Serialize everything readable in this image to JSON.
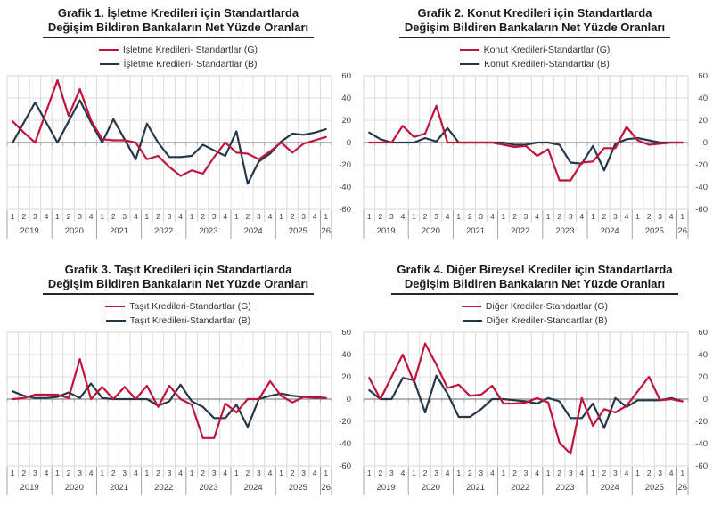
{
  "page": {
    "background": "#ffffff"
  },
  "colors": {
    "series_g": "#C0143C",
    "series_b": "#24384A",
    "grid": "#dcdcdc",
    "zero_line": "#9b9b9b",
    "plot_border": "#d4d4d4",
    "axis_text": "#3f3f3f",
    "title_text": "#1a1a1a",
    "quarter_separator": "#c6c6c6",
    "year_separator": "#9b9b9b"
  },
  "axis_shared": {
    "y_ticks": [
      60,
      40,
      20,
      0,
      -20,
      -40,
      -60
    ],
    "ylim": [
      -60,
      60
    ],
    "quarter_labels": [
      "1",
      "2",
      "3",
      "4",
      "1",
      "2",
      "3",
      "4",
      "1",
      "2",
      "3",
      "4",
      "1",
      "2",
      "3",
      "4",
      "1",
      "2",
      "3",
      "4",
      "1",
      "2",
      "3",
      "4",
      "1",
      "2",
      "3",
      "4",
      "1"
    ],
    "year_groups": [
      {
        "label": "2019",
        "span": 4
      },
      {
        "label": "2020",
        "span": 4
      },
      {
        "label": "2021",
        "span": 4
      },
      {
        "label": "2022",
        "span": 4
      },
      {
        "label": "2023",
        "span": 4
      },
      {
        "label": "2024",
        "span": 4
      },
      {
        "label": "2025",
        "span": 4
      },
      {
        "label": "26",
        "span": 1
      }
    ]
  },
  "chart_data": [
    {
      "type": "line",
      "title_line1": "Grafik 1. İşletme Kredileri için Standartlarda",
      "title_line2": "Değişim Bildiren Bankaların Net Yüzde Oranları",
      "legend": [
        {
          "name": "İşletme Kredileri- Standartlar (G)",
          "color": "#C0143C"
        },
        {
          "name": "İşletme Kredileri- Standartlar (B)",
          "color": "#24384A"
        }
      ],
      "categories": [
        "2019Q1",
        "2019Q2",
        "2019Q3",
        "2019Q4",
        "2020Q1",
        "2020Q2",
        "2020Q3",
        "2020Q4",
        "2021Q1",
        "2021Q2",
        "2021Q3",
        "2021Q4",
        "2022Q1",
        "2022Q2",
        "2022Q3",
        "2022Q4",
        "2023Q1",
        "2023Q2",
        "2023Q3",
        "2023Q4",
        "2024Q1",
        "2024Q2",
        "2024Q3",
        "2024Q4",
        "2025Q1",
        "2025Q2",
        "2025Q3",
        "2025Q4",
        "2026Q1"
      ],
      "series": [
        {
          "name": "İşletme Kredileri- Standartlar (G)",
          "color": "#C0143C",
          "values": [
            19,
            9,
            0,
            28,
            56,
            24,
            48,
            20,
            3,
            2,
            2,
            0,
            -15,
            -12,
            -22,
            -30,
            -25,
            -28,
            -13,
            0,
            -9,
            -10,
            -15,
            -8,
            0,
            -9,
            -1,
            2,
            5
          ]
        },
        {
          "name": "İşletme Kredileri- Standartlar (B)",
          "color": "#24384A",
          "values": [
            0,
            18,
            36,
            18,
            0,
            19,
            38,
            18,
            0,
            21,
            3,
            -15,
            17,
            0,
            -13,
            -13,
            -12,
            -2,
            -7,
            -12,
            10,
            -37,
            -17,
            -10,
            1,
            8,
            7,
            9,
            12
          ]
        }
      ],
      "ylim": [
        -60,
        60
      ],
      "y_ticks": [
        60,
        40,
        20,
        0,
        -20,
        -40,
        -60
      ],
      "grid": true,
      "legend_position": "top"
    },
    {
      "type": "line",
      "title_line1": "Grafik 2. Konut Kredileri için Standartlarda",
      "title_line2": "Değişim Bildiren Bankaların Net Yüzde Oranları",
      "legend": [
        {
          "name": "Konut Kredileri-Standartlar (G)",
          "color": "#C0143C"
        },
        {
          "name": "Konut Kredileri-Standartlar (B)",
          "color": "#24384A"
        }
      ],
      "categories": [
        "2019Q1",
        "2019Q2",
        "2019Q3",
        "2019Q4",
        "2020Q1",
        "2020Q2",
        "2020Q3",
        "2020Q4",
        "2021Q1",
        "2021Q2",
        "2021Q3",
        "2021Q4",
        "2022Q1",
        "2022Q2",
        "2022Q3",
        "2022Q4",
        "2023Q1",
        "2023Q2",
        "2023Q3",
        "2023Q4",
        "2024Q1",
        "2024Q2",
        "2024Q3",
        "2024Q4",
        "2025Q1",
        "2025Q2",
        "2025Q3",
        "2025Q4",
        "2026Q1"
      ],
      "series": [
        {
          "name": "Konut Kredileri-Standartlar (G)",
          "color": "#C0143C",
          "values": [
            0,
            0,
            0,
            15,
            5,
            8,
            33,
            0,
            0,
            0,
            0,
            0,
            -2,
            -4,
            -3,
            -12,
            -6,
            -34,
            -34,
            -18,
            -17,
            -5,
            -5,
            14,
            2,
            -2,
            -1,
            0,
            0
          ]
        },
        {
          "name": "Konut Kredileri-Standartlar (B)",
          "color": "#24384A",
          "values": [
            9,
            3,
            0,
            0,
            0,
            4,
            1,
            13,
            0,
            0,
            0,
            0,
            0,
            -2,
            -2,
            0,
            0,
            -2,
            -18,
            -19,
            -3,
            -25,
            -1,
            3,
            4,
            2,
            0,
            0,
            0
          ]
        }
      ],
      "ylim": [
        -60,
        60
      ],
      "y_ticks": [
        60,
        40,
        20,
        0,
        -20,
        -40,
        -60
      ],
      "grid": true,
      "legend_position": "top"
    },
    {
      "type": "line",
      "title_line1": "Grafik 3. Taşıt Kredileri için Standartlarda",
      "title_line2": "Değişim Bildiren Bankaların Net Yüzde Oranları",
      "legend": [
        {
          "name": "Taşıt Kredileri-Standartlar (G)",
          "color": "#C0143C"
        },
        {
          "name": "Taşıt Kredileri-Standartlar (B)",
          "color": "#24384A"
        }
      ],
      "categories": [
        "2019Q1",
        "2019Q2",
        "2019Q3",
        "2019Q4",
        "2020Q1",
        "2020Q2",
        "2020Q3",
        "2020Q4",
        "2021Q1",
        "2021Q2",
        "2021Q3",
        "2021Q4",
        "2022Q1",
        "2022Q2",
        "2022Q3",
        "2022Q4",
        "2023Q1",
        "2023Q2",
        "2023Q3",
        "2023Q4",
        "2024Q1",
        "2024Q2",
        "2024Q3",
        "2024Q4",
        "2025Q1",
        "2025Q2",
        "2025Q3",
        "2025Q4",
        "2026Q1"
      ],
      "series": [
        {
          "name": "Taşıt Kredileri-Standartlar (G)",
          "color": "#C0143C",
          "values": [
            0,
            1,
            4,
            4,
            4,
            1,
            36,
            0,
            11,
            0,
            11,
            0,
            12,
            -7,
            12,
            0,
            -5,
            -35,
            -35,
            -4,
            -12,
            0,
            0,
            16,
            3,
            -3,
            2,
            1,
            1
          ]
        },
        {
          "name": "Taşıt Kredileri-Standartlar (B)",
          "color": "#24384A",
          "values": [
            7,
            3,
            1,
            1,
            2,
            6,
            1,
            14,
            1,
            0,
            0,
            0,
            0,
            -6,
            -2,
            13,
            -2,
            -7,
            -17,
            -17,
            -5,
            -25,
            0,
            3,
            5,
            3,
            2,
            2,
            1
          ]
        }
      ],
      "ylim": [
        -60,
        60
      ],
      "y_ticks": [
        60,
        40,
        20,
        0,
        -20,
        -40,
        -60
      ],
      "grid": true,
      "legend_position": "top"
    },
    {
      "type": "line",
      "title_line1": "Grafik 4. Diğer Bireysel Krediler için Standartlarda",
      "title_line2": "Değişim Bildiren Bankaların Net Yüzde Oranları",
      "legend": [
        {
          "name": "Diğer Krediler-Standartlar (G)",
          "color": "#C0143C"
        },
        {
          "name": "Diğer Krediler-Standartlar (B)",
          "color": "#24384A"
        }
      ],
      "categories": [
        "2019Q1",
        "2019Q2",
        "2019Q3",
        "2019Q4",
        "2020Q1",
        "2020Q2",
        "2020Q3",
        "2020Q4",
        "2021Q1",
        "2021Q2",
        "2021Q3",
        "2021Q4",
        "2022Q1",
        "2022Q2",
        "2022Q3",
        "2022Q4",
        "2023Q1",
        "2023Q2",
        "2023Q3",
        "2023Q4",
        "2024Q1",
        "2024Q2",
        "2024Q3",
        "2024Q4",
        "2025Q1",
        "2025Q2",
        "2025Q3",
        "2025Q4",
        "2026Q1"
      ],
      "series": [
        {
          "name": "Diğer Krediler-Standartlar (G)",
          "color": "#C0143C",
          "values": [
            19,
            0,
            20,
            40,
            15,
            50,
            31,
            10,
            13,
            3,
            4,
            12,
            -4,
            -4,
            -3,
            1,
            -3,
            -39,
            -49,
            1,
            -24,
            -9,
            -12,
            -6,
            7,
            20,
            -1,
            0,
            -2
          ]
        },
        {
          "name": "Diğer Krediler-Standartlar (B)",
          "color": "#24384A",
          "values": [
            8,
            0,
            0,
            19,
            17,
            -12,
            21,
            5,
            -16,
            -16,
            -9,
            0,
            0,
            -1,
            -2,
            -4,
            1,
            -2,
            -17,
            -17,
            -4,
            -26,
            1,
            -7,
            -1,
            -1,
            -1,
            1,
            -2
          ]
        }
      ],
      "ylim": [
        -60,
        60
      ],
      "y_ticks": [
        60,
        40,
        20,
        0,
        -20,
        -40,
        -60
      ],
      "grid": true,
      "legend_position": "top"
    }
  ]
}
